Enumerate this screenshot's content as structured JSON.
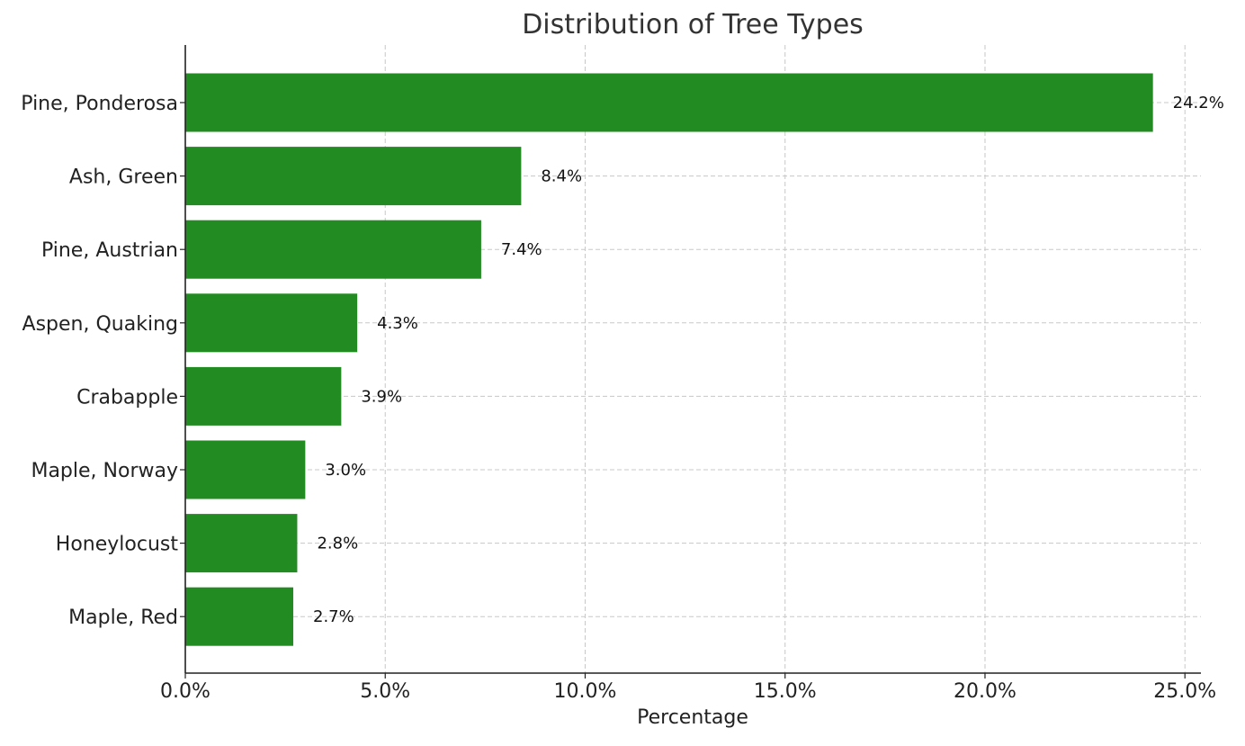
{
  "chart_data": {
    "type": "bar",
    "orientation": "horizontal",
    "title": "Distribution of Tree Types",
    "xlabel": "Percentage",
    "ylabel": "",
    "categories": [
      "Pine, Ponderosa",
      "Ash, Green",
      "Pine, Austrian",
      "Aspen, Quaking",
      "Crabapple",
      "Maple, Norway",
      "Honeylocust",
      "Maple, Red"
    ],
    "values": [
      24.2,
      8.4,
      7.4,
      4.3,
      3.9,
      3.0,
      2.8,
      2.7
    ],
    "value_labels": [
      "24.2%",
      "8.4%",
      "7.4%",
      "4.3%",
      "3.9%",
      "3.0%",
      "2.8%",
      "2.7%"
    ],
    "xlim": [
      0,
      25.4
    ],
    "xticks": [
      0,
      5,
      10,
      15,
      20,
      25
    ],
    "xtick_labels": [
      "0.0%",
      "5.0%",
      "10.0%",
      "15.0%",
      "20.0%",
      "25.0%"
    ],
    "grid": true,
    "grid_style": "dashed",
    "bar_color": "#228b22",
    "legend": "none"
  }
}
